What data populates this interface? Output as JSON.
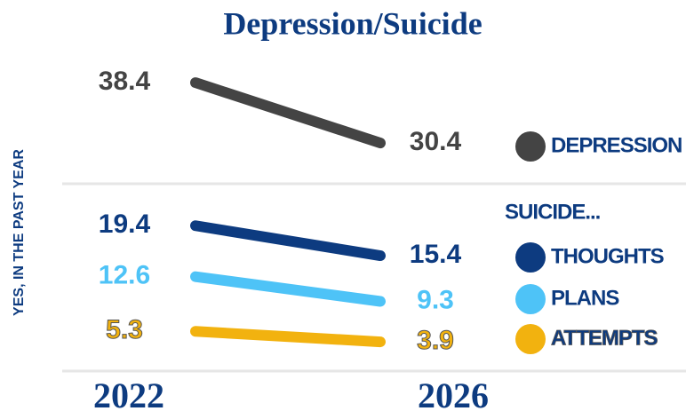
{
  "chart_data": [
    {
      "type": "line",
      "title": "Depression/Suicide",
      "y_label": "YES, IN THE PAST YEAR",
      "categories": [
        "2022",
        "2026"
      ],
      "ylim": [
        25,
        43
      ],
      "series": [
        {
          "name": "DEPRESSION",
          "color": "#444444",
          "values": [
            38.4,
            30.4
          ]
        }
      ]
    },
    {
      "type": "line",
      "legend_title": "SUICIDE...",
      "categories": [
        "2022",
        "2026"
      ],
      "ylim": [
        0,
        25
      ],
      "series": [
        {
          "name": "THOUGHTS",
          "color": "#0d3b80",
          "values": [
            19.4,
            15.4
          ]
        },
        {
          "name": "PLANS",
          "color": "#4ec3f7",
          "values": [
            12.6,
            9.3
          ]
        },
        {
          "name": "ATTEMPTS",
          "color": "#f2b20f",
          "values": [
            5.3,
            3.9
          ]
        }
      ]
    }
  ]
}
